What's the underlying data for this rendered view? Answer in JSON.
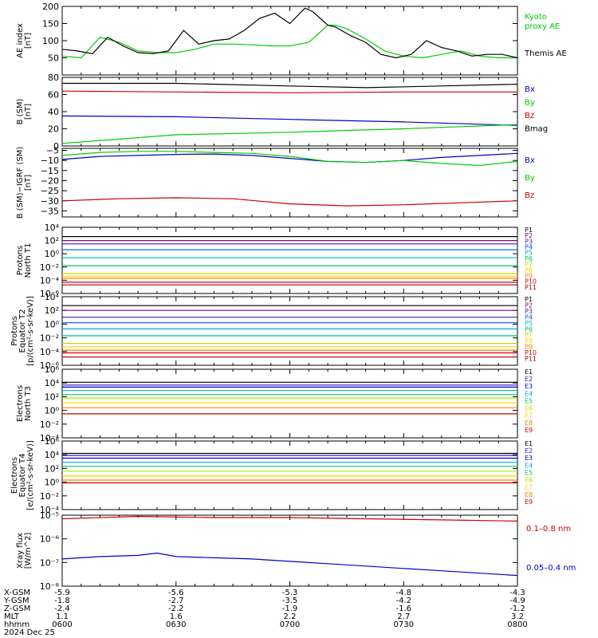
{
  "figure": {
    "date_label": "2024 Dec 25",
    "ephemeris": [
      {
        "label": "X-GSM",
        "values": [
          "-5.9",
          "-5.6",
          "-5.3",
          "-4.8",
          "-4.3"
        ]
      },
      {
        "label": "Y-GSM",
        "values": [
          "-1.8",
          "-2.7",
          "-3.5",
          "-4.2",
          "-4.9"
        ]
      },
      {
        "label": "Z-GSM",
        "values": [
          "-2.4",
          "-2.2",
          "-1.9",
          "-1.6",
          "-1.2"
        ]
      },
      {
        "label": "MLT",
        "values": [
          "1.1",
          "1.6",
          "2.2",
          "2.7",
          "3.2"
        ]
      },
      {
        "label": "hhmm",
        "values": [
          "0600",
          "0630",
          "0700",
          "0730",
          "0800"
        ]
      }
    ],
    "colors": {
      "black": "#000000",
      "green": "#00cc00",
      "blue": "#0000cc",
      "red": "#cc0000",
      "p1": "#000000",
      "p2": "#8b0080",
      "p3": "#3a1fb0",
      "p4": "#0050ff",
      "p5": "#00b0d0",
      "p6": "#00c070",
      "p7": "#b8e000",
      "p8": "#ffd000",
      "p9": "#ff8000",
      "p10": "#e00000",
      "p11": "#a00000"
    }
  },
  "chart_data": [
    {
      "type": "line",
      "ylabel": [
        "AE index",
        "[nT]"
      ],
      "ylim": [
        0,
        200
      ],
      "yscale": "linear",
      "yticks": [
        [
          "50",
          50
        ],
        [
          "100",
          100
        ],
        [
          "150",
          150
        ],
        [
          "200",
          200
        ]
      ],
      "x_range": [
        0,
        120
      ],
      "series": [
        {
          "name": "Kyoto proxy AE",
          "label_lines": [
            "Kyoto",
            "proxy AE"
          ],
          "color": "#00cc00",
          "x": [
            0,
            5,
            10,
            15,
            20,
            25,
            30,
            35,
            40,
            45,
            50,
            55,
            60,
            65,
            70,
            72,
            75,
            80,
            85,
            90,
            95,
            100,
            105,
            110,
            115,
            120
          ],
          "y": [
            55,
            50,
            110,
            95,
            70,
            65,
            65,
            75,
            90,
            90,
            88,
            85,
            85,
            95,
            145,
            145,
            135,
            105,
            70,
            55,
            50,
            60,
            70,
            55,
            50,
            50
          ]
        },
        {
          "name": "Themis AE",
          "label_lines": [
            "Themis AE"
          ],
          "color": "#000000",
          "x": [
            0,
            4,
            8,
            12,
            16,
            20,
            24,
            28,
            32,
            36,
            40,
            44,
            48,
            52,
            56,
            60,
            64,
            66,
            68,
            70,
            72,
            76,
            80,
            84,
            88,
            92,
            96,
            100,
            104,
            108,
            112,
            116,
            120
          ],
          "y": [
            75,
            70,
            62,
            110,
            85,
            65,
            62,
            70,
            130,
            90,
            100,
            105,
            130,
            165,
            180,
            150,
            195,
            185,
            165,
            145,
            140,
            115,
            95,
            60,
            50,
            60,
            100,
            80,
            70,
            55,
            60,
            60,
            50
          ]
        }
      ]
    },
    {
      "type": "line",
      "ylabel": [
        "B (SM)",
        "[nT]"
      ],
      "ylim": [
        0,
        80
      ],
      "yscale": "linear",
      "yticks": [
        [
          "0",
          0
        ],
        [
          "20",
          20
        ],
        [
          "40",
          40
        ],
        [
          "60",
          60
        ],
        [
          "80",
          80
        ]
      ],
      "x_range": [
        0,
        120
      ],
      "series": [
        {
          "name": "Bx",
          "color": "#0000cc",
          "x": [
            0,
            30,
            60,
            90,
            120
          ],
          "y": [
            35,
            34,
            31,
            28,
            24
          ]
        },
        {
          "name": "By",
          "color": "#00cc00",
          "x": [
            0,
            30,
            60,
            90,
            120
          ],
          "y": [
            3,
            13,
            16,
            20,
            25
          ]
        },
        {
          "name": "Bz",
          "color": "#cc0000",
          "x": [
            0,
            30,
            60,
            90,
            120
          ],
          "y": [
            64,
            63,
            62,
            63,
            63
          ]
        },
        {
          "name": "Bmag",
          "color": "#000000",
          "x": [
            0,
            30,
            60,
            80,
            100,
            120
          ],
          "y": [
            73,
            73,
            70,
            68,
            70,
            72
          ]
        }
      ]
    },
    {
      "type": "line",
      "ylabel": [
        "B (SM)−IGRF (SM)",
        "[nT]"
      ],
      "ylim": [
        -38,
        -4
      ],
      "yscale": "linear",
      "yticks": [
        [
          "−5",
          -5
        ],
        [
          "−10",
          -10
        ],
        [
          "−15",
          -15
        ],
        [
          "−20",
          -20
        ],
        [
          "−25",
          -25
        ],
        [
          "−30",
          -30
        ],
        [
          "−35",
          -35
        ]
      ],
      "x_range": [
        0,
        120
      ],
      "series": [
        {
          "name": "Bx",
          "color": "#0000cc",
          "x": [
            0,
            10,
            20,
            30,
            40,
            50,
            60,
            70,
            80,
            90,
            100,
            110,
            120
          ],
          "y": [
            -9.5,
            -8,
            -7.5,
            -7,
            -6.8,
            -7.5,
            -9,
            -10.5,
            -11,
            -10,
            -8.5,
            -7.5,
            -6.5
          ]
        },
        {
          "name": "By",
          "color": "#00cc00",
          "x": [
            0,
            10,
            20,
            30,
            40,
            50,
            60,
            70,
            80,
            90,
            100,
            110,
            120
          ],
          "y": [
            -7.5,
            -6,
            -5.5,
            -5.5,
            -6,
            -6.5,
            -8,
            -10.5,
            -11,
            -10,
            -11.5,
            -12.5,
            -10.5
          ]
        },
        {
          "name": "Bz",
          "color": "#cc0000",
          "x": [
            0,
            15,
            30,
            45,
            60,
            75,
            90,
            105,
            120
          ],
          "y": [
            -30,
            -29,
            -28.5,
            -29,
            -31.5,
            -32.5,
            -32,
            -31,
            -30
          ]
        }
      ]
    },
    {
      "type": "line",
      "ylabel": [
        "Protons",
        "North T1"
      ],
      "ylim": [
        -6,
        4
      ],
      "yscale": "log",
      "yticks": [
        [
          "10⁴",
          4
        ],
        [
          "10²",
          2
        ],
        [
          "10⁰",
          0
        ],
        [
          "10⁻²",
          -2
        ],
        [
          "10⁻⁴",
          -4
        ],
        [
          "10⁻⁶",
          -6
        ]
      ],
      "x_range": [
        0,
        120
      ],
      "series": [
        {
          "name": "P1",
          "color": "#000000",
          "x": [
            0,
            120
          ],
          "y": [
            2.6,
            2.6
          ]
        },
        {
          "name": "P2",
          "color": "#8b0080",
          "x": [
            0,
            120
          ],
          "y": [
            2.0,
            2.0
          ]
        },
        {
          "name": "P3",
          "color": "#3a1fb0",
          "x": [
            0,
            120
          ],
          "y": [
            1.5,
            1.5
          ]
        },
        {
          "name": "P4",
          "color": "#0050ff",
          "x": [
            0,
            120
          ],
          "y": [
            0.6,
            0.6
          ]
        },
        {
          "name": "P5",
          "color": "#00b0d0",
          "x": [
            0,
            120
          ],
          "y": [
            -0.6,
            -0.6
          ]
        },
        {
          "name": "P6",
          "color": "#00c070",
          "x": [
            0,
            120
          ],
          "y": [
            -1.8,
            -1.8
          ]
        },
        {
          "name": "P7",
          "color": "#b8e000",
          "x": [
            0,
            120
          ],
          "y": [
            -3.0,
            -3.0
          ]
        },
        {
          "name": "P8",
          "color": "#ffd000",
          "x": [
            0,
            120
          ],
          "y": [
            -3.4,
            -3.4
          ]
        },
        {
          "name": "P9",
          "color": "#ff8000",
          "x": [
            0,
            120
          ],
          "y": [
            -3.7,
            -3.7
          ]
        },
        {
          "name": "P10",
          "color": "#e00000",
          "x": [
            0,
            120
          ],
          "y": [
            -4.3,
            -4.3
          ]
        },
        {
          "name": "P11",
          "color": "#a00000",
          "x": [
            0,
            120
          ],
          "y": [
            -4.7,
            -4.7
          ]
        }
      ]
    },
    {
      "type": "line",
      "ylabel": [
        "Protons",
        "Equator T2",
        "[p/(cm²-s-sr-keV)]"
      ],
      "ylim": [
        -6,
        4
      ],
      "yscale": "log",
      "yticks": [
        [
          "10⁴",
          4
        ],
        [
          "10²",
          2
        ],
        [
          "10⁰",
          0
        ],
        [
          "10⁻²",
          -2
        ],
        [
          "10⁻⁴",
          -4
        ],
        [
          "10⁻⁶",
          -6
        ]
      ],
      "x_range": [
        0,
        120
      ],
      "series": [
        {
          "name": "P1",
          "color": "#000000",
          "x": [
            0,
            120
          ],
          "y": [
            2.7,
            2.7
          ]
        },
        {
          "name": "P2",
          "color": "#8b0080",
          "x": [
            0,
            120
          ],
          "y": [
            2.0,
            2.0
          ]
        },
        {
          "name": "P3",
          "color": "#3a1fb0",
          "x": [
            0,
            120
          ],
          "y": [
            1.0,
            1.0
          ]
        },
        {
          "name": "P4",
          "color": "#0050ff",
          "x": [
            0,
            120
          ],
          "y": [
            0.2,
            0.2
          ]
        },
        {
          "name": "P5",
          "color": "#00b0d0",
          "x": [
            0,
            120
          ],
          "y": [
            -0.7,
            -0.7
          ]
        },
        {
          "name": "P6",
          "color": "#00c070",
          "x": [
            0,
            120
          ],
          "y": [
            -1.7,
            -1.7
          ]
        },
        {
          "name": "P7",
          "color": "#b8e000",
          "x": [
            0,
            120
          ],
          "y": [
            -2.8,
            -2.8
          ]
        },
        {
          "name": "P8",
          "color": "#ffd000",
          "x": [
            0,
            120
          ],
          "y": [
            -3.3,
            -3.3
          ]
        },
        {
          "name": "P9",
          "color": "#ff8000",
          "x": [
            0,
            120
          ],
          "y": [
            -3.8,
            -3.8
          ]
        },
        {
          "name": "P10",
          "color": "#e00000",
          "x": [
            0,
            120
          ],
          "y": [
            -4.2,
            -4.2
          ]
        },
        {
          "name": "P11",
          "color": "#a00000",
          "x": [
            0,
            120
          ],
          "y": [
            -4.8,
            -4.8
          ]
        }
      ]
    },
    {
      "type": "line",
      "ylabel": [
        "Electrons",
        "North T3"
      ],
      "ylim": [
        -4,
        6
      ],
      "yscale": "log",
      "yticks": [
        [
          "10⁶",
          6
        ],
        [
          "10⁴",
          4
        ],
        [
          "10²",
          2
        ],
        [
          "10⁰",
          0
        ],
        [
          "10⁻²",
          -2
        ],
        [
          "10⁻⁴",
          -4
        ]
      ],
      "x_range": [
        0,
        120
      ],
      "series": [
        {
          "name": "E1",
          "color": "#000000",
          "x": [
            0,
            120
          ],
          "y": [
            4.1,
            4.1
          ]
        },
        {
          "name": "E2",
          "color": "#3a1fb0",
          "x": [
            0,
            120
          ],
          "y": [
            3.7,
            3.7
          ]
        },
        {
          "name": "E3",
          "color": "#0000cc",
          "x": [
            0,
            120
          ],
          "y": [
            3.4,
            3.4
          ]
        },
        {
          "name": "E4",
          "color": "#00b0d0",
          "x": [
            0,
            120
          ],
          "y": [
            2.9,
            2.9
          ]
        },
        {
          "name": "E5",
          "color": "#00c070",
          "x": [
            0,
            120
          ],
          "y": [
            2.3,
            2.3
          ]
        },
        {
          "name": "E6",
          "color": "#b8e000",
          "x": [
            0,
            120
          ],
          "y": [
            1.8,
            1.8
          ]
        },
        {
          "name": "E7",
          "color": "#ffd000",
          "x": [
            0,
            120
          ],
          "y": [
            1.1,
            1.1
          ]
        },
        {
          "name": "E8",
          "color": "#ff8000",
          "x": [
            0,
            120
          ],
          "y": [
            0.4,
            0.4
          ]
        },
        {
          "name": "E9",
          "color": "#cc0000",
          "x": [
            0,
            120
          ],
          "y": [
            -0.5,
            -0.5
          ]
        }
      ]
    },
    {
      "type": "line",
      "ylabel": [
        "Electrons",
        "Equator T4",
        "[e/(cm²-s-sr-keV)]"
      ],
      "ylim": [
        -4,
        6
      ],
      "yscale": "log",
      "yticks": [
        [
          "10⁶",
          6
        ],
        [
          "10⁴",
          4
        ],
        [
          "10²",
          2
        ],
        [
          "10⁰",
          0
        ],
        [
          "10⁻²",
          -2
        ],
        [
          "10⁻⁴",
          -4
        ]
      ],
      "x_range": [
        0,
        120
      ],
      "series": [
        {
          "name": "E1",
          "color": "#000000",
          "x": [
            0,
            120
          ],
          "y": [
            4.2,
            4.2
          ]
        },
        {
          "name": "E2",
          "color": "#3a1fb0",
          "x": [
            0,
            120
          ],
          "y": [
            3.9,
            3.9
          ]
        },
        {
          "name": "E3",
          "color": "#0000cc",
          "x": [
            0,
            120
          ],
          "y": [
            3.5,
            3.5
          ]
        },
        {
          "name": "E4",
          "color": "#00b0d0",
          "x": [
            0,
            120
          ],
          "y": [
            2.9,
            2.9
          ]
        },
        {
          "name": "E5",
          "color": "#00c070",
          "x": [
            0,
            120
          ],
          "y": [
            2.3,
            2.3
          ]
        },
        {
          "name": "E6",
          "color": "#b8e000",
          "x": [
            0,
            120
          ],
          "y": [
            1.6,
            1.6
          ]
        },
        {
          "name": "E7",
          "color": "#ffd000",
          "x": [
            0,
            120
          ],
          "y": [
            0.9,
            0.9
          ]
        },
        {
          "name": "E8",
          "color": "#ff8000",
          "x": [
            0,
            120
          ],
          "y": [
            0.3,
            0.3
          ]
        },
        {
          "name": "E9",
          "color": "#cc0000",
          "x": [
            0,
            120
          ],
          "y": [
            -0.1,
            -0.1
          ]
        }
      ]
    },
    {
      "type": "line",
      "ylabel": [
        "Xray flux",
        "[W/m^2]"
      ],
      "ylim": [
        -8,
        -5
      ],
      "yscale": "log",
      "yticks": [
        [
          "10⁻⁵",
          -5
        ],
        [
          "10⁻⁶",
          -6
        ],
        [
          "10⁻⁷",
          -7
        ],
        [
          "10⁻⁸",
          -8
        ]
      ],
      "x_range": [
        0,
        120
      ],
      "series": [
        {
          "name": "0.1–0.8 nm",
          "color": "#cc0000",
          "x": [
            0,
            20,
            40,
            60,
            80,
            100,
            120
          ],
          "y": [
            -5.15,
            -5.05,
            -5.1,
            -5.1,
            -5.15,
            -5.2,
            -5.25
          ]
        },
        {
          "name": "0.05–0.4 nm",
          "color": "#0000cc",
          "x": [
            0,
            10,
            20,
            25,
            30,
            40,
            50,
            60,
            70,
            80,
            90,
            100,
            110,
            120
          ],
          "y": [
            -6.85,
            -6.75,
            -6.7,
            -6.6,
            -6.75,
            -6.8,
            -6.85,
            -6.95,
            -7.05,
            -7.15,
            -7.25,
            -7.35,
            -7.45,
            -7.55
          ]
        }
      ]
    }
  ]
}
